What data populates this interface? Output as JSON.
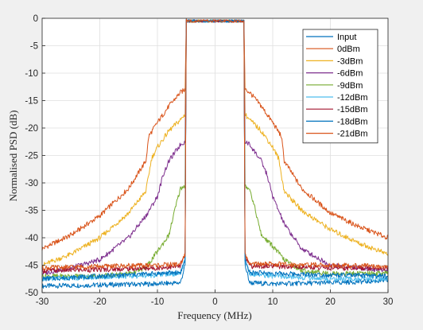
{
  "chart_data": {
    "type": "line",
    "xlabel": "Frequency (MHz)",
    "ylabel": "Normalised PSD (dB)",
    "xlim": [
      -30,
      30
    ],
    "ylim": [
      -50,
      0
    ],
    "xticks": [
      -30,
      -20,
      -10,
      0,
      10,
      20,
      30
    ],
    "yticks": [
      0,
      -5,
      -10,
      -15,
      -20,
      -25,
      -30,
      -35,
      -40,
      -45,
      -50
    ],
    "grid": true,
    "legend_position": "top-right",
    "series": [
      {
        "name": "Input",
        "color": "#0072bd",
        "x": [
          -30,
          -20,
          -10,
          -6,
          -5.2,
          -5,
          5,
          5.2,
          6,
          10,
          20,
          30
        ],
        "y": [
          -48.8,
          -48.6,
          -48.4,
          -48.2,
          -45,
          -0.5,
          -0.5,
          -45,
          -48.2,
          -48.4,
          -48.2,
          -47.8
        ]
      },
      {
        "name": "0dBm",
        "color": "#d95319",
        "x": [
          -30,
          -25,
          -20,
          -15,
          -12,
          -11.5,
          -10,
          -8,
          -6,
          -5.2,
          -5,
          5,
          5.2,
          6,
          8,
          10,
          11.5,
          12,
          15,
          20,
          25,
          30
        ],
        "y": [
          -42,
          -39.5,
          -36,
          -31,
          -26,
          -21.5,
          -19,
          -16,
          -13.5,
          -13,
          -0.5,
          -0.5,
          -13,
          -13.5,
          -16,
          -19,
          -21.5,
          -26,
          -31,
          -35.5,
          -38,
          -40
        ]
      },
      {
        "name": "-3dBm",
        "color": "#edb120",
        "x": [
          -30,
          -25,
          -20,
          -15,
          -12,
          -11,
          -10,
          -8,
          -6,
          -5.2,
          -5,
          5,
          5.2,
          6,
          8,
          10,
          11,
          12,
          15,
          20,
          25,
          30
        ],
        "y": [
          -45,
          -43,
          -40,
          -35.5,
          -31.5,
          -25.5,
          -23.5,
          -20.5,
          -18.5,
          -17.5,
          -0.5,
          -0.5,
          -17.5,
          -18.5,
          -20.5,
          -23.5,
          -25.5,
          -31.5,
          -35,
          -38.5,
          -41,
          -43
        ]
      },
      {
        "name": "-6dBm",
        "color": "#7e2f8e",
        "x": [
          -30,
          -25,
          -20,
          -15,
          -12,
          -10,
          -9,
          -8,
          -6,
          -5.2,
          -5,
          5,
          5.2,
          6,
          8,
          9,
          10,
          12,
          15,
          20,
          25,
          30
        ],
        "y": [
          -46.5,
          -45.5,
          -44,
          -40,
          -36,
          -32.5,
          -28.5,
          -26,
          -23,
          -22.5,
          -0.5,
          -0.5,
          -22.5,
          -23,
          -26,
          -28.5,
          -32.5,
          -37.5,
          -42,
          -45,
          -45.5,
          -46
        ]
      },
      {
        "name": "-9dBm",
        "color": "#77ac30",
        "x": [
          -30,
          -20,
          -15,
          -12,
          -10,
          -8,
          -7,
          -6,
          -5.2,
          -5,
          5,
          5.2,
          6,
          7,
          8,
          10,
          12,
          15,
          20,
          30
        ],
        "y": [
          -47,
          -47,
          -46.5,
          -45.5,
          -42.5,
          -39.5,
          -35,
          -31,
          -30.5,
          -0.5,
          -0.5,
          -30.5,
          -31,
          -35,
          -39.5,
          -41.5,
          -44,
          -46,
          -46.5,
          -46.5
        ]
      },
      {
        "name": "-12dBm",
        "color": "#4dbeee",
        "x": [
          -30,
          -20,
          -10,
          -6,
          -5.2,
          -5,
          5,
          5.2,
          6,
          10,
          20,
          30
        ],
        "y": [
          -47.5,
          -47.2,
          -46.8,
          -46.5,
          -44,
          -0.5,
          -0.5,
          -44,
          -46.5,
          -47,
          -47.5,
          -47.5
        ]
      },
      {
        "name": "-15dBm",
        "color": "#a2142f",
        "x": [
          -30,
          -20,
          -10,
          -6,
          -5.2,
          -5,
          5,
          5.2,
          6,
          10,
          20,
          30
        ],
        "y": [
          -46,
          -45.8,
          -45.5,
          -45.2,
          -43,
          -0.5,
          -0.5,
          -43,
          -45.2,
          -45.2,
          -45.5,
          -45.5
        ]
      },
      {
        "name": "-18dBm",
        "color": "#0072bd",
        "x": [
          -30,
          -20,
          -10,
          -6,
          -5.2,
          -5,
          5,
          5.2,
          6,
          10,
          20,
          30
        ],
        "y": [
          -47.5,
          -47,
          -46.5,
          -46.3,
          -44,
          -0.5,
          -0.5,
          -44,
          -46.3,
          -46.5,
          -46.8,
          -47
        ]
      },
      {
        "name": "-21dBm",
        "color": "#d95319",
        "x": [
          -30,
          -20,
          -10,
          -6,
          -5.2,
          -5,
          5,
          5.2,
          6,
          10,
          20,
          30
        ],
        "y": [
          -45.5,
          -45.2,
          -45,
          -44.8,
          -43,
          -0.5,
          -0.5,
          -43,
          -44.8,
          -44.8,
          -45,
          -45.2
        ]
      }
    ]
  }
}
